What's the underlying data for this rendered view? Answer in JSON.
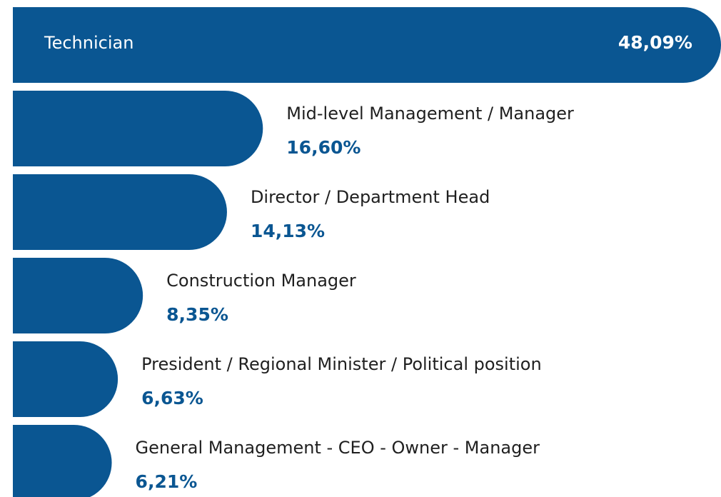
{
  "chart_data": {
    "type": "bar",
    "categories": [
      "Technician",
      "Mid-level Management / Manager",
      "Director / Department Head",
      "Construction Manager",
      "President / Regional Minister / Political position",
      "General Management - CEO - Owner - Manager"
    ],
    "values": [
      48.09,
      16.6,
      14.13,
      8.35,
      6.63,
      6.21
    ],
    "value_labels": [
      "48,09%",
      "16,60%",
      "14,13%",
      "8,35%",
      "6,63%",
      "6,21%"
    ],
    "color": "#0a5692"
  }
}
